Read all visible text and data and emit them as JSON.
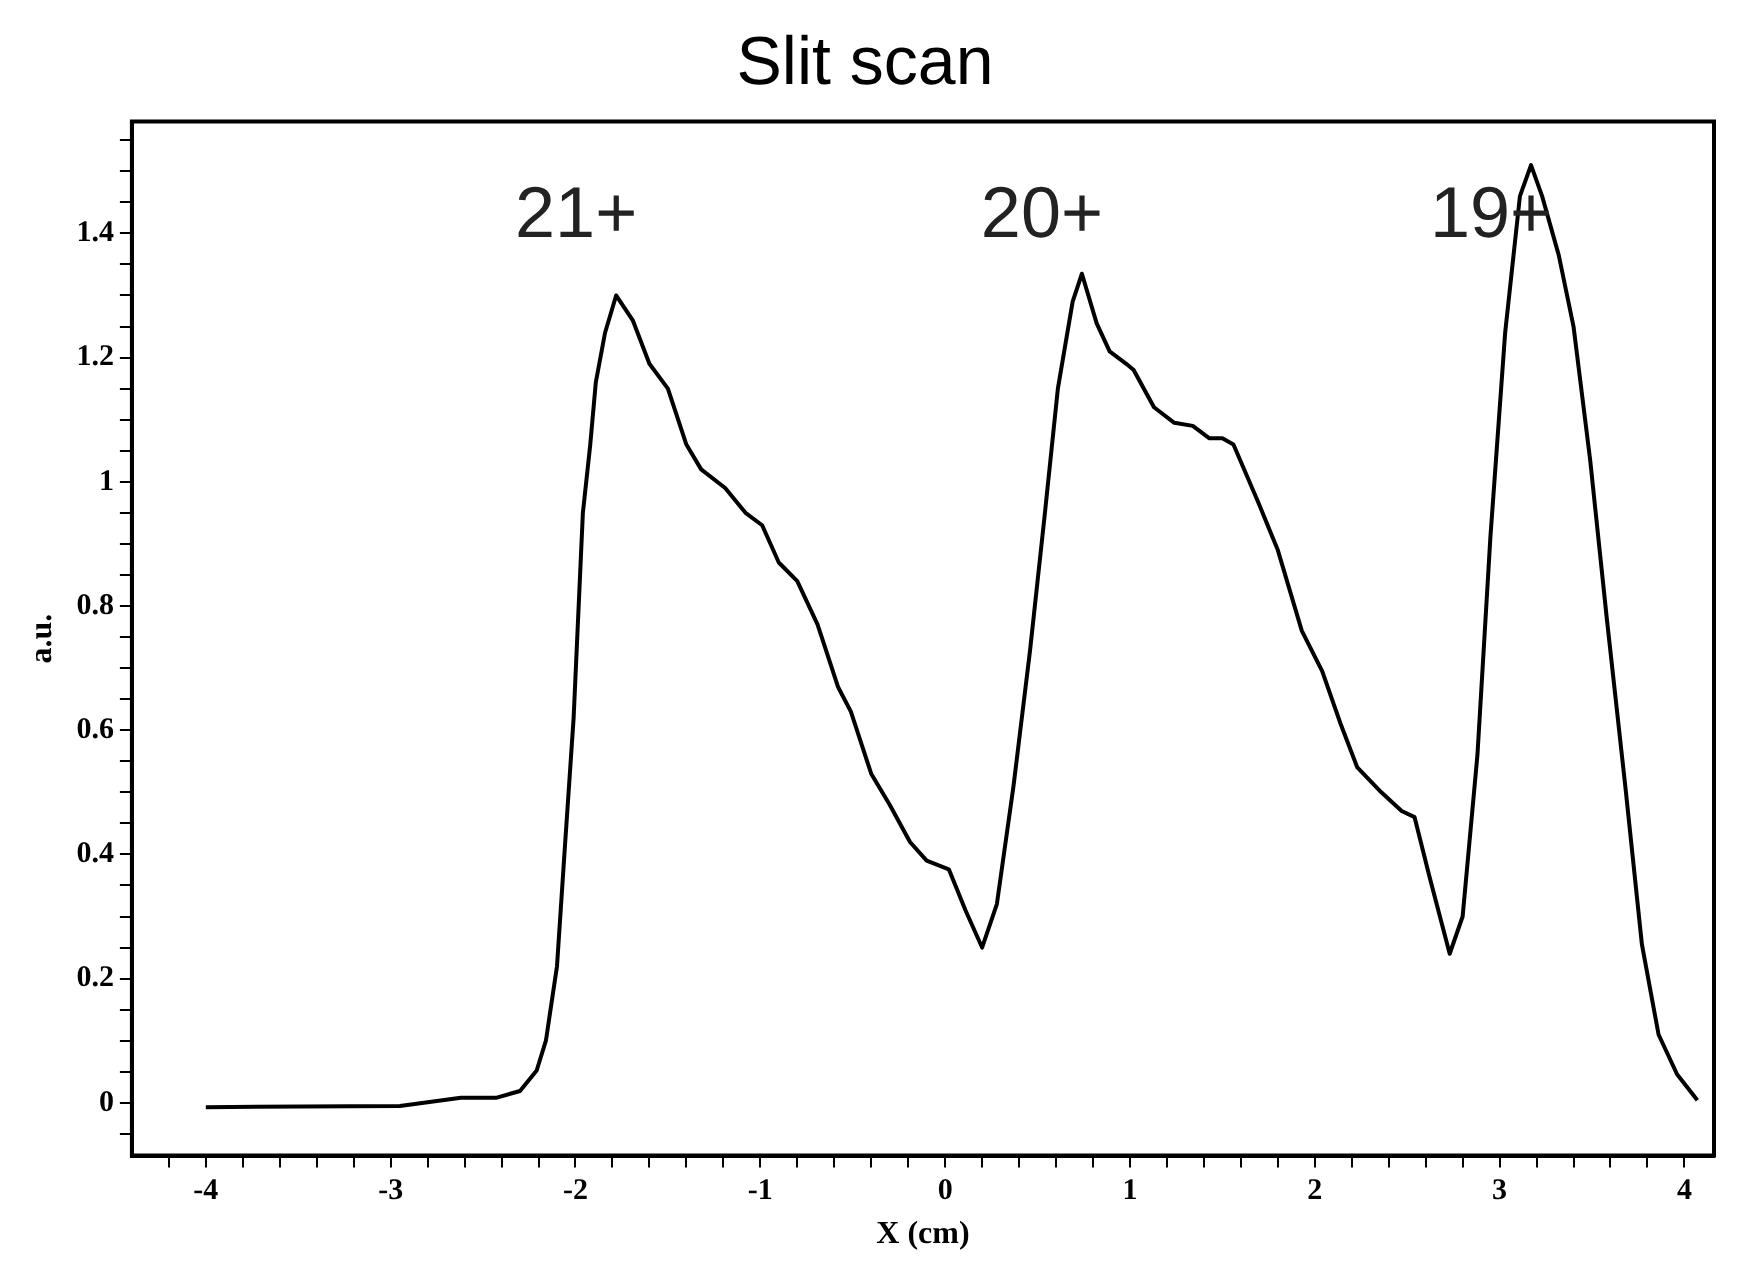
{
  "chart_data": {
    "type": "line",
    "title": "Slit scan",
    "xlabel": "X (cm)",
    "ylabel": "a.u.",
    "annotations": [
      "21+",
      "20+",
      "19+"
    ],
    "series": [
      {
        "color": "#000000",
        "x": [
          -4,
          -2.95,
          -2.62,
          -2.43,
          -2.3,
          -2.21,
          -2.16,
          -2.1,
          -2.06,
          -2.01,
          -1.96,
          -1.92,
          -1.89,
          -1.84,
          -1.78,
          -1.69,
          -1.6,
          -1.5,
          -1.4,
          -1.32,
          -1.19,
          -1.08,
          -0.99,
          -0.9,
          -0.8,
          -0.69,
          -0.58,
          -0.51,
          -0.4,
          -0.3,
          -0.19,
          -0.1,
          0.02,
          0.11,
          0.2,
          0.28,
          0.37,
          0.46,
          0.54,
          0.61,
          0.69,
          0.74,
          0.82,
          0.89,
          0.98,
          1.02,
          1.13,
          1.24,
          1.34,
          1.43,
          1.5,
          1.56,
          1.69,
          1.8,
          1.93,
          2.04,
          2.14,
          2.23,
          2.36,
          2.47,
          2.54,
          2.62,
          2.73,
          2.8,
          2.88,
          2.95,
          3.03,
          3.11,
          3.17,
          3.23,
          3.32,
          3.4,
          3.49,
          3.58,
          3.68,
          3.77,
          3.86,
          3.96,
          4.07
        ],
        "values": [
          -0.007,
          -0.005,
          0.008,
          0.008,
          0.019,
          0.052,
          0.1,
          0.22,
          0.4,
          0.62,
          0.95,
          1.06,
          1.16,
          1.24,
          1.3,
          1.26,
          1.19,
          1.15,
          1.06,
          1.02,
          0.99,
          0.95,
          0.93,
          0.87,
          0.84,
          0.77,
          0.67,
          0.63,
          0.53,
          0.48,
          0.42,
          0.39,
          0.376,
          0.31,
          0.25,
          0.32,
          0.51,
          0.73,
          0.95,
          1.15,
          1.29,
          1.335,
          1.255,
          1.21,
          1.19,
          1.18,
          1.12,
          1.095,
          1.09,
          1.07,
          1.07,
          1.06,
          0.97,
          0.89,
          0.76,
          0.695,
          0.61,
          0.54,
          0.5,
          0.47,
          0.46,
          0.365,
          0.24,
          0.3,
          0.56,
          0.91,
          1.24,
          1.46,
          1.51,
          1.46,
          1.365,
          1.25,
          1.035,
          0.78,
          0.51,
          0.255,
          0.11,
          0.046,
          0.004
        ]
      }
    ],
    "xlim": [
      -4.4,
      4.16
    ],
    "ylim": [
      -0.085,
      1.58
    ],
    "xticks": [
      {
        "value": -4.2,
        "label": null
      },
      -4,
      {
        "value": -3.8,
        "label": null
      },
      {
        "value": -3.6,
        "label": null
      },
      {
        "value": -3.4,
        "label": null
      },
      {
        "value": -3.2,
        "label": null
      },
      -3,
      {
        "value": -2.8,
        "label": null
      },
      {
        "value": -2.6,
        "label": null
      },
      {
        "value": -2.4,
        "label": null
      },
      {
        "value": -2.2,
        "label": null
      },
      -2,
      {
        "value": -1.8,
        "label": null
      },
      {
        "value": -1.6,
        "label": null
      },
      {
        "value": -1.4,
        "label": null
      },
      {
        "value": -1.2,
        "label": null
      },
      -1,
      {
        "value": -0.8,
        "label": null
      },
      {
        "value": -0.6,
        "label": null
      },
      {
        "value": -0.4,
        "label": null
      },
      {
        "value": -0.2,
        "label": null
      },
      0,
      {
        "value": 0.2,
        "label": null
      },
      {
        "value": 0.4,
        "label": null
      },
      {
        "value": 0.6,
        "label": null
      },
      {
        "value": 0.8,
        "label": null
      },
      1,
      {
        "value": 1.2,
        "label": null
      },
      {
        "value": 1.4,
        "label": null
      },
      {
        "value": 1.6,
        "label": null
      },
      {
        "value": 1.8,
        "label": null
      },
      2,
      {
        "value": 2.2,
        "label": null
      },
      {
        "value": 2.4,
        "label": null
      },
      {
        "value": 2.6,
        "label": null
      },
      {
        "value": 2.8,
        "label": null
      },
      3,
      {
        "value": 3.2,
        "label": null
      },
      {
        "value": 3.4,
        "label": null
      },
      {
        "value": 3.6,
        "label": null
      },
      {
        "value": 3.8,
        "label": null
      },
      4
    ],
    "yticks": [
      {
        "value": -0.05,
        "label": null
      },
      0,
      {
        "value": 0.05,
        "label": null
      },
      {
        "value": 0.1,
        "label": null
      },
      {
        "value": 0.15,
        "label": null
      },
      0.2,
      {
        "value": 0.25,
        "label": null
      },
      {
        "value": 0.3,
        "label": null
      },
      {
        "value": 0.35,
        "label": null
      },
      0.4,
      {
        "value": 0.45,
        "label": null
      },
      {
        "value": 0.5,
        "label": null
      },
      {
        "value": 0.55,
        "label": null
      },
      0.6,
      {
        "value": 0.65,
        "label": null
      },
      {
        "value": 0.7,
        "label": null
      },
      {
        "value": 0.75,
        "label": null
      },
      0.8,
      {
        "value": 0.85,
        "label": null
      },
      {
        "value": 0.9,
        "label": null
      },
      {
        "value": 0.95,
        "label": null
      },
      1,
      {
        "value": 1.05,
        "label": null
      },
      {
        "value": 1.1,
        "label": null
      },
      {
        "value": 1.15,
        "label": null
      },
      1.2,
      {
        "value": 1.25,
        "label": null
      },
      {
        "value": 1.3,
        "label": null
      },
      {
        "value": 1.35,
        "label": null
      },
      1.4,
      {
        "value": 1.45,
        "label": null
      },
      {
        "value": 1.5,
        "label": null
      },
      {
        "value": 1.55,
        "label": null
      }
    ],
    "marker": "none",
    "line_style": "solid",
    "legend": false
  }
}
